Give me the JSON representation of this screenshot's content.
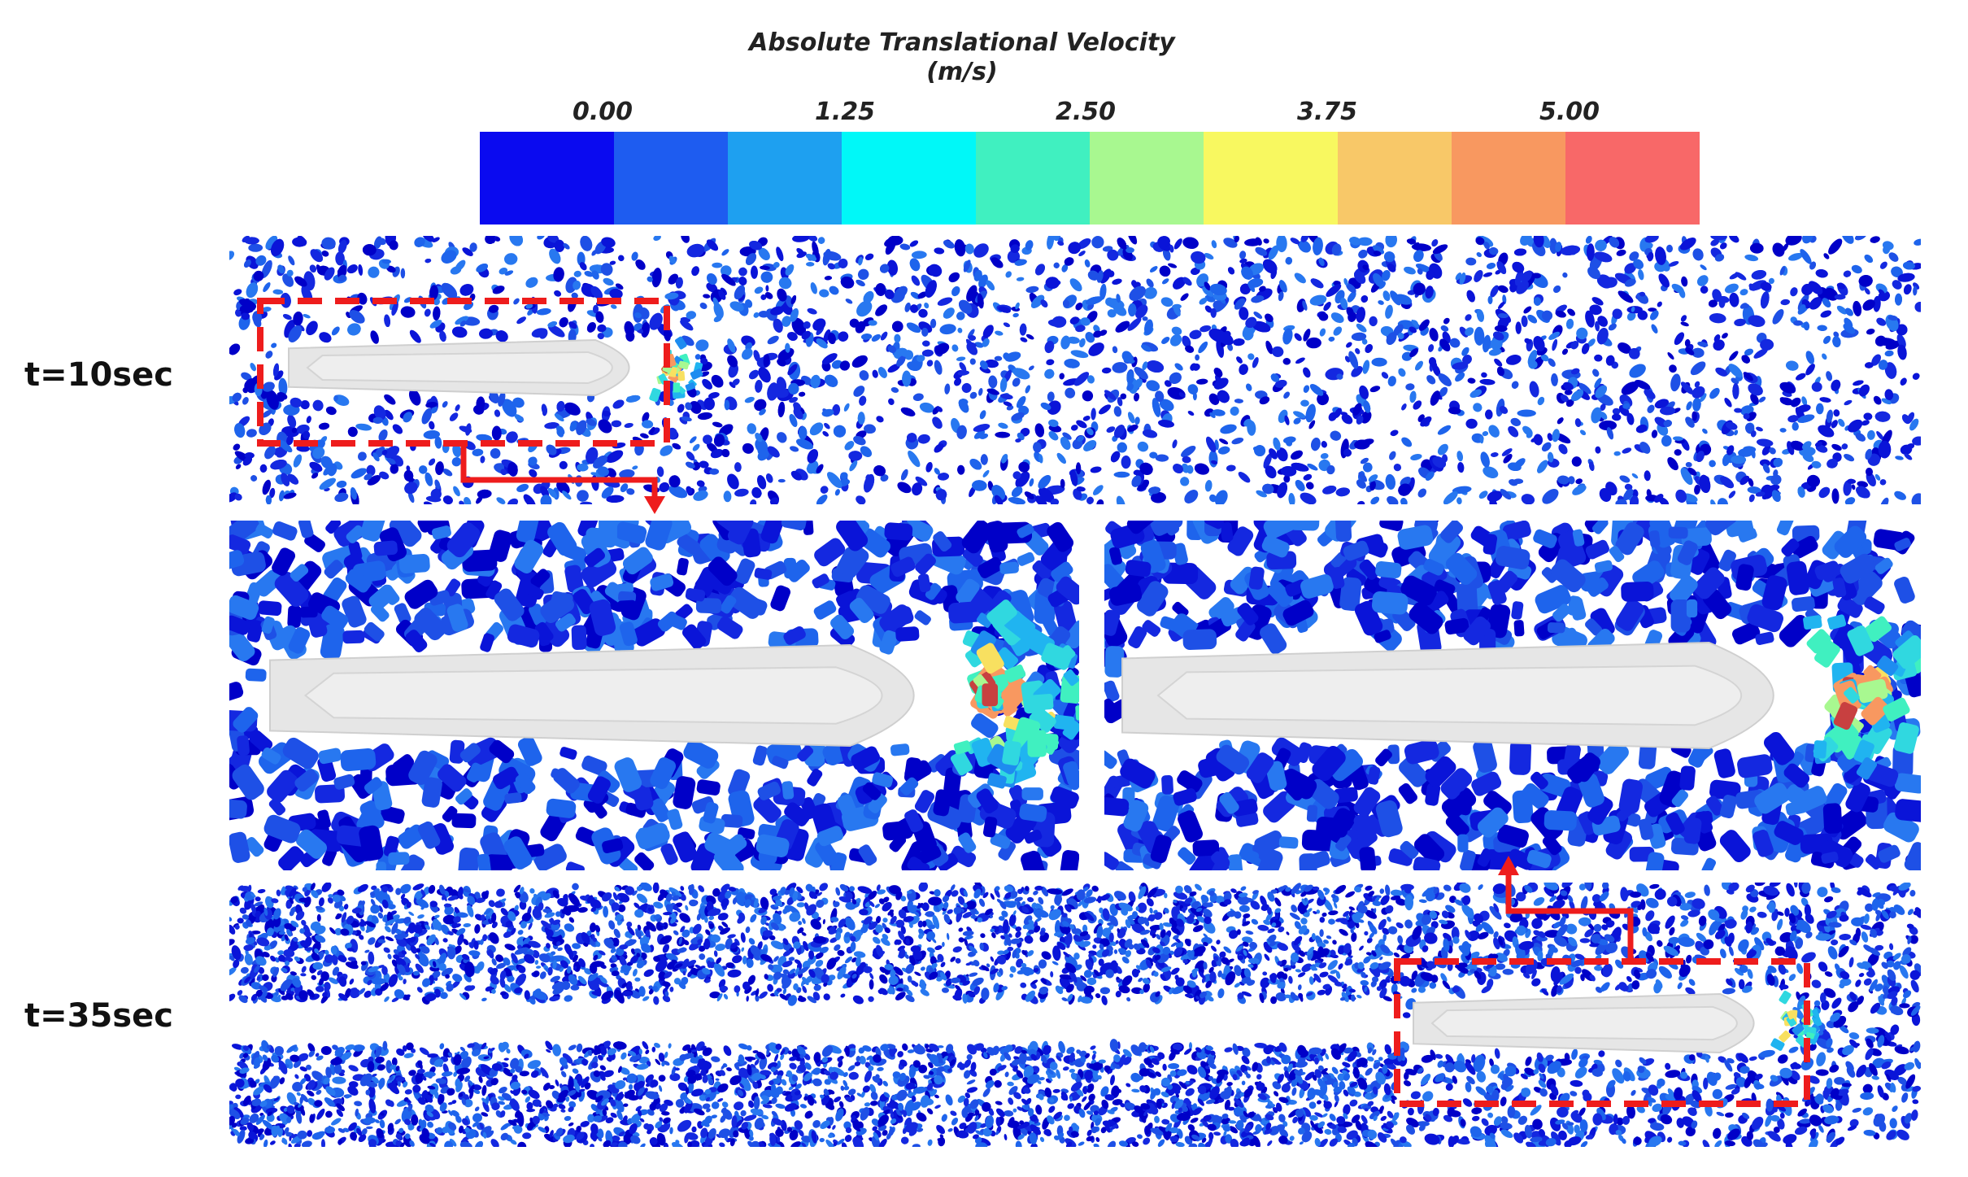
{
  "legend": {
    "title": "Absolute Translational Velocity",
    "unit": "(m/s)",
    "ticks": [
      "0.00",
      "1.25",
      "2.50",
      "3.75",
      "5.00"
    ],
    "colors": [
      "#0a0af0",
      "#1e5cf0",
      "#1ea0f0",
      "#00f8f8",
      "#40f0c0",
      "#a8f890",
      "#f8f860",
      "#f8c868",
      "#f89860",
      "#f86868"
    ]
  },
  "panels": {
    "top": {
      "label": "t=10sec"
    },
    "bottom": {
      "label": "t=35sec"
    }
  },
  "colors": {
    "particle_dark": "#0000c8",
    "particle_mid": "#1e50e6",
    "particle_light": "#1e8cf0",
    "ship_hull": "#e6e6e6",
    "callout": "#ee1c1c"
  }
}
